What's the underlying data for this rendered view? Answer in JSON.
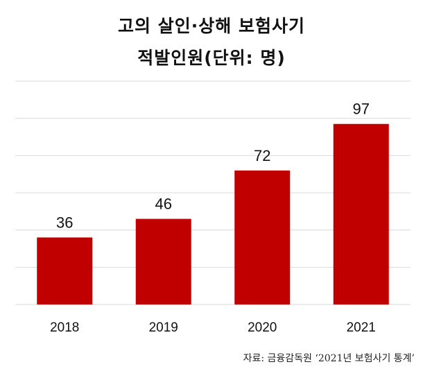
{
  "chart_data": {
    "type": "bar",
    "title": "고의 살인·상해 보험사기",
    "subtitle": "적발인원(단위: 명)",
    "categories": [
      "2018",
      "2019",
      "2020",
      "2021"
    ],
    "values": [
      36,
      46,
      72,
      97
    ],
    "ylim": [
      0,
      120
    ],
    "y_gridlines": [
      0,
      20,
      40,
      60,
      80,
      100,
      120
    ],
    "grid": true,
    "bar_color": "#c00000",
    "gridline_color": "#d9d9d9",
    "source": "자료: 금융감독원 ‘2021년 보험사기 통계’"
  }
}
